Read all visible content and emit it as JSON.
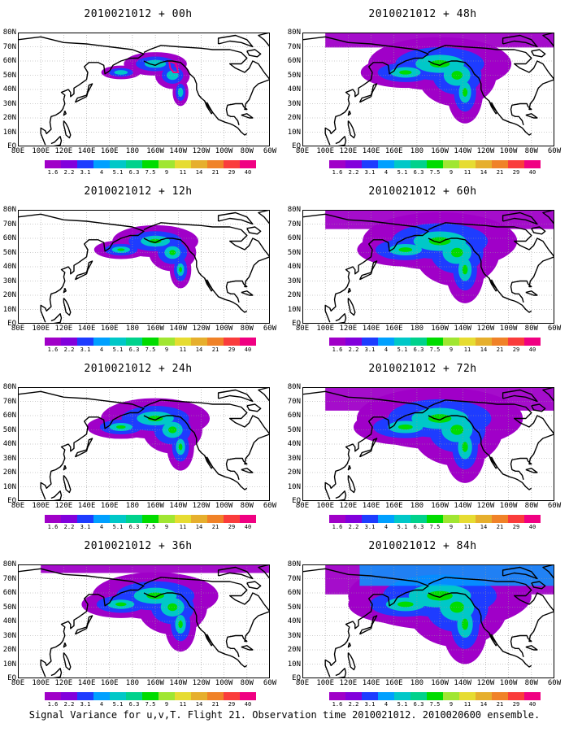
{
  "caption": "Signal Variance for u,v,T. Flight 21. Observation time 2010021012. 2010020600 ensemble.",
  "panels": [
    {
      "title": "2010021012 + 00h",
      "spread": 0.55
    },
    {
      "title": "2010021012 + 48h",
      "spread": 1.25
    },
    {
      "title": "2010021012 + 12h",
      "spread": 0.75
    },
    {
      "title": "2010021012 + 60h",
      "spread": 1.35
    },
    {
      "title": "2010021012 + 24h",
      "spread": 0.95
    },
    {
      "title": "2010021012 + 72h",
      "spread": 1.45
    },
    {
      "title": "2010021012 + 36h",
      "spread": 1.1
    },
    {
      "title": "2010021012 + 84h",
      "spread": 1.6
    }
  ],
  "y_labels": [
    "80N",
    "70N",
    "60N",
    "50N",
    "40N",
    "30N",
    "20N",
    "10N",
    "EQ"
  ],
  "x_labels": [
    "80E",
    "100E",
    "120E",
    "140E",
    "160E",
    "180",
    "160W",
    "140W",
    "120W",
    "100W",
    "80W",
    "60W"
  ],
  "colorbar": {
    "labels": [
      "1.6",
      "2.2",
      "3.1",
      "4",
      "5.1",
      "6.3",
      "7.5",
      "9",
      "11",
      "14",
      "21",
      "29",
      "40"
    ],
    "colors": [
      "#a000c8",
      "#8200dc",
      "#1e3cff",
      "#00a0ff",
      "#00c8c8",
      "#00d28c",
      "#00dc00",
      "#a0e632",
      "#e6dc32",
      "#e6af2d",
      "#f08228",
      "#fa3c3c",
      "#f00082"
    ]
  }
}
